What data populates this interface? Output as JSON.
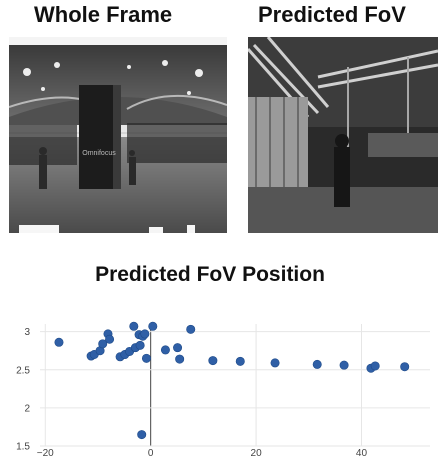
{
  "panels": {
    "left_title": "Whole Frame",
    "right_title": "Predicted FoV"
  },
  "chart_data": {
    "type": "scatter",
    "title": "Predicted FoV Position",
    "xlabel": "",
    "ylabel": "",
    "xlim": [
      -21,
      53
    ],
    "ylim": [
      1.5,
      3.1
    ],
    "xticks": [
      -20,
      0,
      20,
      40
    ],
    "yticks": [
      1.5,
      2,
      2.5,
      3
    ],
    "grid": true,
    "marker_color": "#2f5fa6",
    "points": [
      {
        "x": -17.4,
        "y": 2.86
      },
      {
        "x": -11.3,
        "y": 2.68
      },
      {
        "x": -10.7,
        "y": 2.7
      },
      {
        "x": -9.6,
        "y": 2.75
      },
      {
        "x": -9.1,
        "y": 2.84
      },
      {
        "x": -8.1,
        "y": 2.97
      },
      {
        "x": -7.8,
        "y": 2.9
      },
      {
        "x": -5.8,
        "y": 2.67
      },
      {
        "x": -4.9,
        "y": 2.7
      },
      {
        "x": -4.0,
        "y": 2.74
      },
      {
        "x": -3.2,
        "y": 3.07
      },
      {
        "x": -2.9,
        "y": 2.79
      },
      {
        "x": -2.2,
        "y": 2.96
      },
      {
        "x": -2.0,
        "y": 2.82
      },
      {
        "x": -1.7,
        "y": 1.65
      },
      {
        "x": -1.5,
        "y": 2.94
      },
      {
        "x": -1.1,
        "y": 2.97
      },
      {
        "x": -0.8,
        "y": 2.65
      },
      {
        "x": 0.4,
        "y": 3.07
      },
      {
        "x": 2.8,
        "y": 2.76
      },
      {
        "x": 5.1,
        "y": 2.79
      },
      {
        "x": 5.5,
        "y": 2.64
      },
      {
        "x": 7.6,
        "y": 3.03
      },
      {
        "x": 11.8,
        "y": 2.62
      },
      {
        "x": 17.0,
        "y": 2.61
      },
      {
        "x": 23.6,
        "y": 2.59
      },
      {
        "x": 31.6,
        "y": 2.57
      },
      {
        "x": 36.7,
        "y": 2.56
      },
      {
        "x": 41.8,
        "y": 2.52
      },
      {
        "x": 42.6,
        "y": 2.55
      },
      {
        "x": 48.2,
        "y": 2.54
      }
    ]
  }
}
